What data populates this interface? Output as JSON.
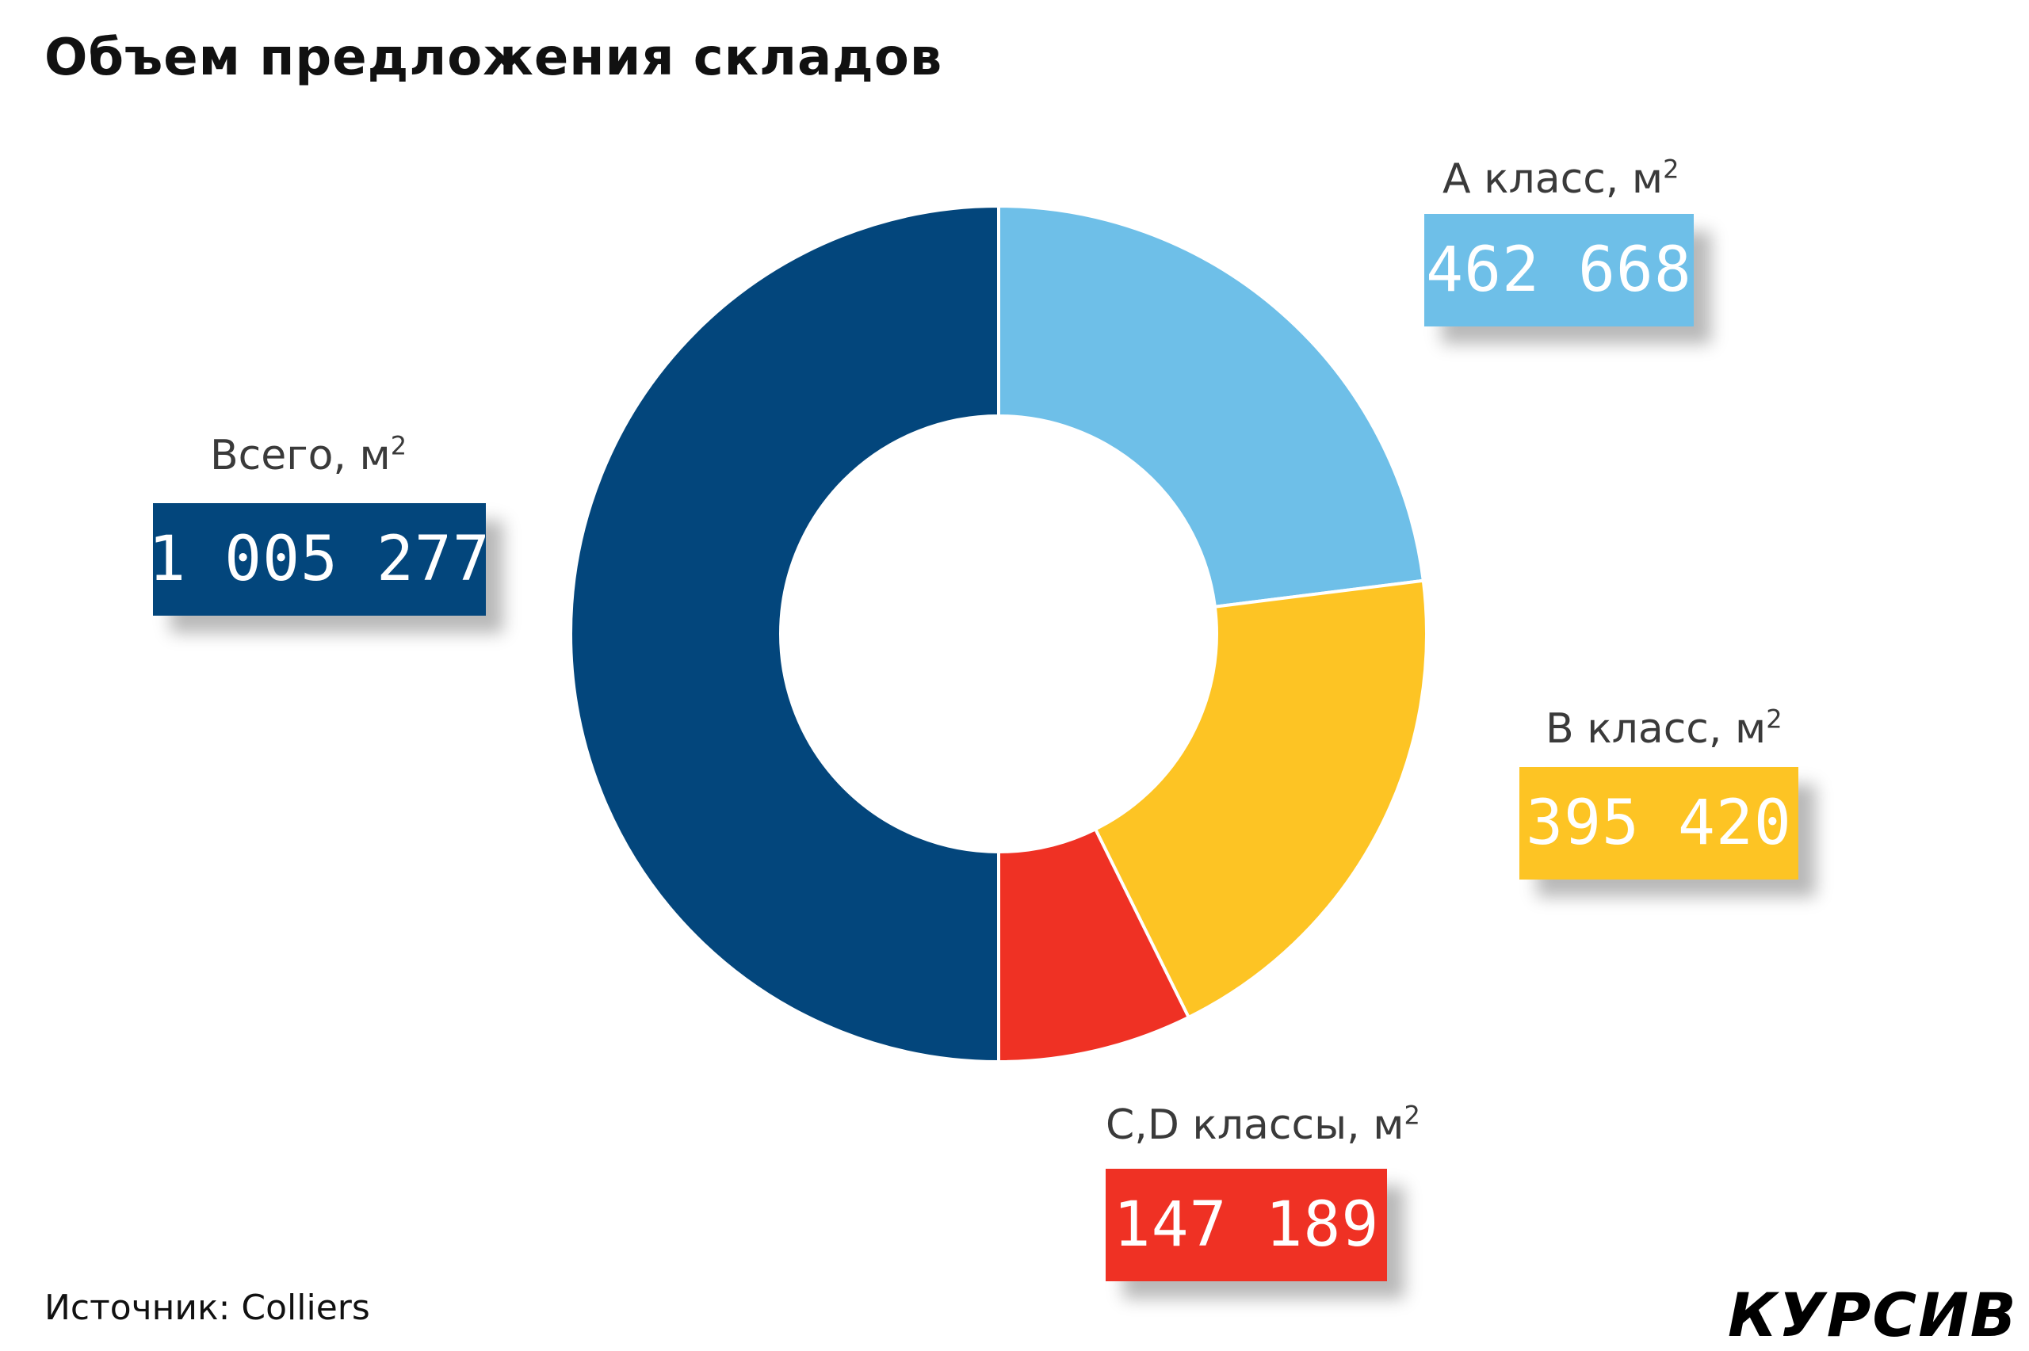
{
  "title": "Объем предложения складов",
  "source": "Источник: Colliers",
  "brand": "КУРСИВ",
  "chart_data": {
    "type": "pie",
    "variant": "donut",
    "title": "Объем предложения складов",
    "unit": "м",
    "unit_superscript": "2",
    "slices": [
      {
        "label": "A класс, м",
        "value": 462668,
        "display": "462 668",
        "color": "#6ebfe8"
      },
      {
        "label": "B класс, м",
        "value": 395420,
        "display": "395 420",
        "color": "#fdc424"
      },
      {
        "label": "C,D классы, м",
        "value": 147189,
        "display": "147 189",
        "color": "#ef3124"
      }
    ],
    "total": {
      "label": "Всего, м",
      "value": 1005277,
      "display": "1 005 277",
      "color": "#03467c"
    }
  }
}
